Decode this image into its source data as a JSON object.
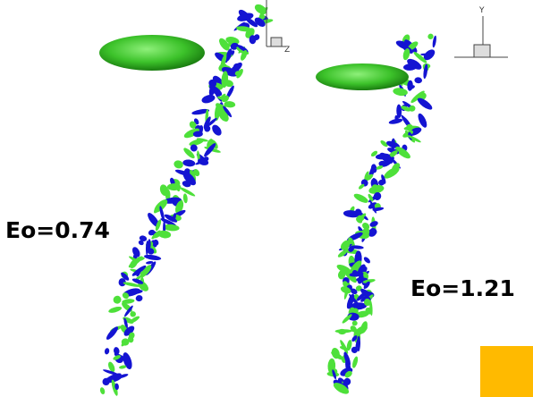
{
  "labels": {
    "left": "Eo=0.74",
    "right": "Eo=1.21"
  },
  "axes": {
    "left_axis": "Z",
    "right_axis": "Y"
  }
}
